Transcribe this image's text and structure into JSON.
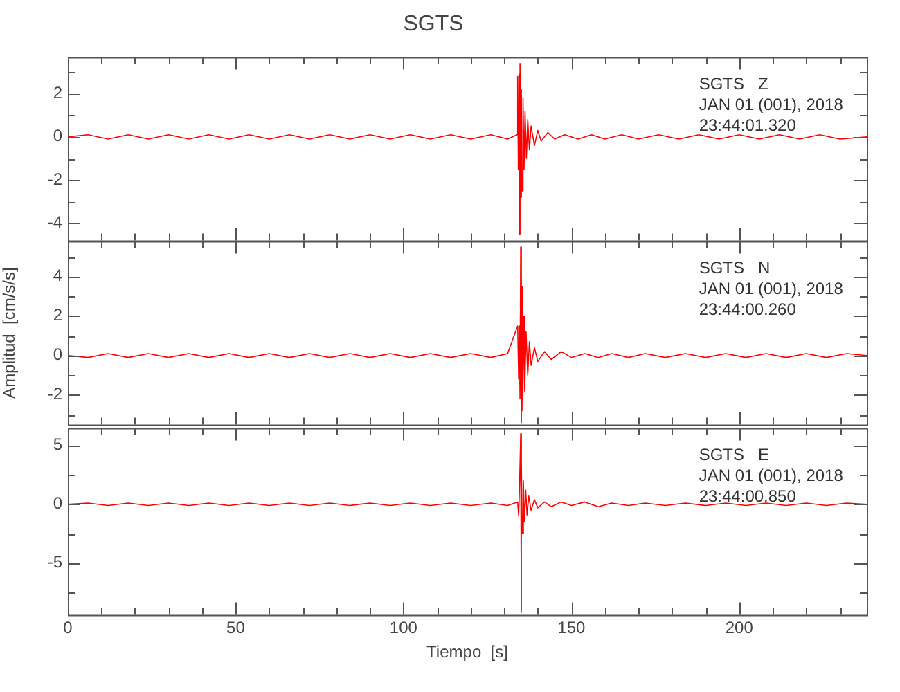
{
  "chart_data": [
    {
      "type": "line",
      "title": "SGTS",
      "annotations": [
        "SGTS   Z",
        "JAN 01 (001), 2018",
        "23:44:01.320"
      ],
      "tick_labels": "y",
      "grid": false,
      "legend": false,
      "marker": "none",
      "xlim": [
        0,
        238
      ],
      "xticks": [
        0,
        {
          "value": 10,
          "label": null
        },
        {
          "value": 20,
          "label": null
        },
        {
          "value": 30,
          "label": null
        },
        {
          "value": 40,
          "label": null
        },
        50,
        {
          "value": 60,
          "label": null
        },
        {
          "value": 70,
          "label": null
        },
        {
          "value": 80,
          "label": null
        },
        {
          "value": 90,
          "label": null
        },
        100,
        {
          "value": 110,
          "label": null
        },
        {
          "value": 120,
          "label": null
        },
        {
          "value": 130,
          "label": null
        },
        {
          "value": 140,
          "label": null
        },
        150,
        {
          "value": 160,
          "label": null
        },
        {
          "value": 170,
          "label": null
        },
        {
          "value": 180,
          "label": null
        },
        {
          "value": 190,
          "label": null
        },
        200,
        {
          "value": 210,
          "label": null
        },
        {
          "value": 220,
          "label": null
        },
        {
          "value": 230,
          "label": null
        }
      ],
      "ylim": [
        -4.8,
        3.7
      ],
      "yticks": [
        -4,
        {
          "value": -3,
          "label": null
        },
        -2,
        {
          "value": -1,
          "label": null
        },
        0,
        {
          "value": 1,
          "label": null
        },
        2,
        {
          "value": 3,
          "label": null
        }
      ],
      "series": [
        {
          "color": "#ff0000",
          "x": [
            0,
            6,
            12,
            18,
            24,
            30,
            36,
            42,
            48,
            54,
            60,
            66,
            72,
            78,
            84,
            90,
            96,
            102,
            108,
            114,
            120,
            126,
            131,
            133.8,
            134.0,
            134.2,
            134.4,
            134.5,
            134.7,
            134.9,
            135.1,
            135.3,
            135.6,
            135.9,
            136.2,
            136.6,
            137.0,
            137.5,
            138.0,
            139.0,
            140.0,
            141.0,
            143.0,
            145.0,
            148.0,
            152.0,
            156.0,
            160.0,
            165.0,
            170.0,
            176.0,
            182.0,
            188.0,
            194.0,
            200.0,
            206.0,
            212.0,
            218.0,
            224.0,
            230.0,
            238.0
          ],
          "values": [
            0.0,
            0.1,
            -0.1,
            0.1,
            -0.1,
            0.1,
            -0.1,
            0.1,
            -0.1,
            0.1,
            -0.1,
            0.1,
            -0.1,
            0.1,
            -0.1,
            0.1,
            -0.1,
            0.1,
            -0.1,
            0.1,
            -0.1,
            0.1,
            -0.1,
            0.1,
            2.8,
            -1.5,
            2.9,
            -4.5,
            3.4,
            -2.8,
            2.2,
            -2.5,
            1.8,
            -1.5,
            1.2,
            -1.0,
            0.8,
            -0.6,
            0.5,
            -0.4,
            0.3,
            -0.2,
            0.2,
            -0.1,
            0.1,
            -0.1,
            0.1,
            -0.1,
            0.1,
            -0.1,
            0.1,
            -0.1,
            0.1,
            -0.1,
            0.1,
            -0.1,
            0.1,
            -0.1,
            0.1,
            -0.1,
            0.0
          ]
        }
      ]
    },
    {
      "type": "line",
      "ylabel": "Amplitud  [cm/s/s]",
      "annotations": [
        "SGTS   N",
        "JAN 01 (001), 2018",
        "23:44:00.260"
      ],
      "tick_labels": "y",
      "grid": false,
      "legend": false,
      "marker": "none",
      "xlim": [
        0,
        238
      ],
      "xticks": [
        0,
        {
          "value": 10,
          "label": null
        },
        {
          "value": 20,
          "label": null
        },
        {
          "value": 30,
          "label": null
        },
        {
          "value": 40,
          "label": null
        },
        50,
        {
          "value": 60,
          "label": null
        },
        {
          "value": 70,
          "label": null
        },
        {
          "value": 80,
          "label": null
        },
        {
          "value": 90,
          "label": null
        },
        100,
        {
          "value": 110,
          "label": null
        },
        {
          "value": 120,
          "label": null
        },
        {
          "value": 130,
          "label": null
        },
        {
          "value": 140,
          "label": null
        },
        150,
        {
          "value": 160,
          "label": null
        },
        {
          "value": 170,
          "label": null
        },
        {
          "value": 180,
          "label": null
        },
        {
          "value": 190,
          "label": null
        },
        200,
        {
          "value": 210,
          "label": null
        },
        {
          "value": 220,
          "label": null
        },
        {
          "value": 230,
          "label": null
        }
      ],
      "ylim": [
        -3.5,
        5.8
      ],
      "yticks": [
        {
          "value": -3,
          "label": null
        },
        -2,
        {
          "value": -1,
          "label": null
        },
        0,
        {
          "value": 1,
          "label": null
        },
        2,
        {
          "value": 3,
          "label": null
        },
        4,
        {
          "value": 5,
          "label": null
        }
      ],
      "series": [
        {
          "color": "#ff0000",
          "x": [
            0,
            6,
            12,
            18,
            24,
            30,
            36,
            42,
            48,
            54,
            60,
            66,
            72,
            78,
            84,
            90,
            96,
            102,
            108,
            114,
            120,
            126,
            131,
            134.0,
            134.3,
            134.5,
            134.7,
            134.9,
            135.1,
            135.3,
            135.5,
            135.8,
            136.1,
            136.5,
            137.0,
            137.5,
            138.0,
            139.0,
            140.0,
            142.0,
            144.0,
            147.0,
            150.0,
            154.0,
            158.0,
            162.0,
            167.0,
            172.0,
            178.0,
            184.0,
            190.0,
            196.0,
            202.0,
            208.0,
            214.0,
            220.0,
            226.0,
            232.0,
            238.0
          ],
          "values": [
            0.0,
            -0.1,
            0.1,
            -0.1,
            0.1,
            -0.1,
            0.1,
            -0.1,
            0.1,
            -0.1,
            0.1,
            -0.1,
            0.1,
            -0.1,
            0.1,
            -0.1,
            0.1,
            -0.1,
            0.1,
            -0.1,
            0.1,
            -0.1,
            0.1,
            1.5,
            -1.2,
            1.5,
            -2.2,
            5.5,
            -3.4,
            3.5,
            -2.8,
            2.0,
            -1.8,
            1.2,
            -1.0,
            0.7,
            -0.5,
            0.4,
            -0.3,
            0.2,
            -0.2,
            0.2,
            -0.1,
            0.1,
            -0.1,
            0.1,
            -0.1,
            0.1,
            -0.1,
            0.1,
            -0.1,
            0.1,
            -0.1,
            0.1,
            -0.1,
            0.1,
            -0.1,
            0.1,
            0.0
          ]
        }
      ]
    },
    {
      "type": "line",
      "xlabel": "Tiempo  [s]",
      "annotations": [
        "SGTS   E",
        "JAN 01 (001), 2018",
        "23:44:00.850"
      ],
      "grid": false,
      "legend": false,
      "marker": "none",
      "xlim": [
        0,
        238
      ],
      "xticks": [
        0,
        {
          "value": 10,
          "label": null
        },
        {
          "value": 20,
          "label": null
        },
        {
          "value": 30,
          "label": null
        },
        {
          "value": 40,
          "label": null
        },
        50,
        {
          "value": 60,
          "label": null
        },
        {
          "value": 70,
          "label": null
        },
        {
          "value": 80,
          "label": null
        },
        {
          "value": 90,
          "label": null
        },
        100,
        {
          "value": 110,
          "label": null
        },
        {
          "value": 120,
          "label": null
        },
        {
          "value": 130,
          "label": null
        },
        {
          "value": 140,
          "label": null
        },
        150,
        {
          "value": 160,
          "label": null
        },
        {
          "value": 170,
          "label": null
        },
        {
          "value": 180,
          "label": null
        },
        {
          "value": 190,
          "label": null
        },
        200,
        {
          "value": 210,
          "label": null
        },
        {
          "value": 220,
          "label": null
        },
        {
          "value": 230,
          "label": null
        }
      ],
      "ylim": [
        -9.4,
        6.5
      ],
      "yticks": [
        {
          "value": -7.5,
          "label": null
        },
        -5,
        {
          "value": -2.5,
          "label": null
        },
        0,
        {
          "value": 2.5,
          "label": null
        },
        5
      ],
      "series": [
        {
          "color": "#ff0000",
          "x": [
            0,
            6,
            12,
            18,
            24,
            30,
            36,
            42,
            48,
            54,
            60,
            66,
            72,
            78,
            84,
            90,
            96,
            102,
            108,
            114,
            120,
            126,
            131,
            134.0,
            134.3,
            134.6,
            134.9,
            135.0,
            135.2,
            135.4,
            135.7,
            136.0,
            136.4,
            136.8,
            137.3,
            138.0,
            139.0,
            140.0,
            142.0,
            144.0,
            147.0,
            150.0,
            154.0,
            158.0,
            162.0,
            167.0,
            172.0,
            178.0,
            184.0,
            190.0,
            196.0,
            202.0,
            208.0,
            214.0,
            220.0,
            226.0,
            232.0,
            238.0
          ],
          "values": [
            0.0,
            0.1,
            -0.1,
            0.1,
            -0.1,
            0.1,
            -0.1,
            0.1,
            -0.1,
            0.1,
            -0.1,
            0.1,
            -0.1,
            0.1,
            -0.1,
            0.1,
            -0.1,
            0.1,
            -0.1,
            0.1,
            -0.1,
            0.1,
            -0.1,
            0.2,
            -1.0,
            2.0,
            6.0,
            -9.2,
            3.5,
            -2.5,
            2.0,
            -1.5,
            1.2,
            -0.9,
            0.7,
            -0.5,
            0.4,
            -0.3,
            0.2,
            -0.2,
            0.2,
            -0.1,
            0.2,
            -0.2,
            0.1,
            -0.1,
            0.1,
            -0.1,
            0.1,
            -0.1,
            0.1,
            -0.1,
            0.1,
            -0.1,
            0.1,
            -0.1,
            0.1,
            0.0
          ]
        }
      ]
    }
  ]
}
